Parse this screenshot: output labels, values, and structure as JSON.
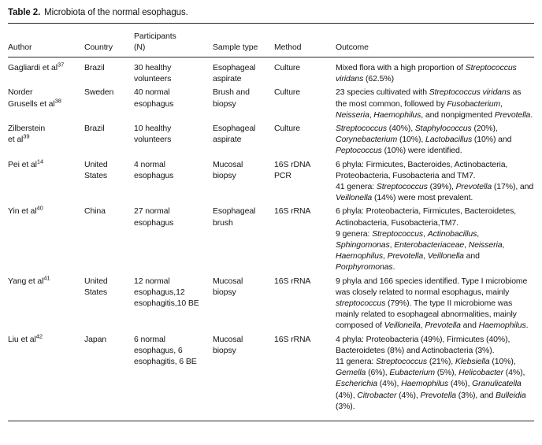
{
  "caption": {
    "bold": "Table 2.",
    "text": "Microbiota of the normal esophagus."
  },
  "columns": [
    {
      "id": "author",
      "lines": [
        "Author"
      ]
    },
    {
      "id": "country",
      "lines": [
        "Country"
      ]
    },
    {
      "id": "participants",
      "lines": [
        "Participants",
        "(N)"
      ]
    },
    {
      "id": "sample_type",
      "lines": [
        "Sample type"
      ]
    },
    {
      "id": "method",
      "lines": [
        "Method"
      ]
    },
    {
      "id": "outcome",
      "lines": [
        "Outcome"
      ]
    }
  ],
  "rows": [
    {
      "author": [
        {
          "t": "Gagliardi et al",
          "ref": "37"
        }
      ],
      "country": "Brazil",
      "participants": "30 healthy volunteers",
      "sample_type": "Esophageal aspirate",
      "method": "Culture",
      "outcome": [
        [
          {
            "t": "Mixed flora with a high proportion of "
          },
          {
            "t": "Streptococcus viridans",
            "i": 1
          },
          {
            "t": " (62.5%)"
          }
        ]
      ]
    },
    {
      "author": [
        {
          "t": "Norder"
        },
        {
          "t": "Grusells et al",
          "ref": "38"
        }
      ],
      "country": "Sweden",
      "participants": "40 normal esophagus",
      "sample_type": "Brush and biopsy",
      "method": "Culture",
      "outcome": [
        [
          {
            "t": "23 species cultivated with "
          },
          {
            "t": "Streptococcus viridans",
            "i": 1
          },
          {
            "t": " as the most common, followed by "
          },
          {
            "t": "Fusobacterium",
            "i": 1
          },
          {
            "t": ", "
          },
          {
            "t": "Neisseria",
            "i": 1
          },
          {
            "t": ", "
          },
          {
            "t": "Haemophilus",
            "i": 1
          },
          {
            "t": ", and nonpigmented "
          },
          {
            "t": "Prevotella",
            "i": 1
          },
          {
            "t": "."
          }
        ]
      ]
    },
    {
      "author": [
        {
          "t": "Zilberstein"
        },
        {
          "t": "et al",
          "ref": "39"
        }
      ],
      "country": "Brazil",
      "participants": "10 healthy volunteers",
      "sample_type": "Esophageal aspirate",
      "method": "Culture",
      "outcome": [
        [
          {
            "t": "Streptococcus",
            "i": 1
          },
          {
            "t": " (40%), "
          },
          {
            "t": "Staphylococcus",
            "i": 1
          },
          {
            "t": " (20%), "
          },
          {
            "t": "Corynebacterium",
            "i": 1
          },
          {
            "t": " (10%), "
          },
          {
            "t": "Lactobacillus",
            "i": 1
          },
          {
            "t": " (10%) and "
          },
          {
            "t": "Peptococcus",
            "i": 1
          },
          {
            "t": " (10%) were identified."
          }
        ]
      ]
    },
    {
      "author": [
        {
          "t": "Pei et al",
          "ref": "14"
        }
      ],
      "country": "United States",
      "participants": "4 normal esophagus",
      "sample_type": "Mucosal biopsy",
      "method": "16S rDNA PCR",
      "outcome": [
        [
          {
            "t": "6 phyla: Firmicutes, Bacteroides, Actinobacteria, Proteobacteria, Fusobacteria and TM7."
          }
        ],
        [
          {
            "t": "41 genera: "
          },
          {
            "t": "Streptococcus",
            "i": 1
          },
          {
            "t": " (39%), "
          },
          {
            "t": "Prevotella",
            "i": 1
          },
          {
            "t": " (17%), and "
          },
          {
            "t": "Veillonella",
            "i": 1
          },
          {
            "t": " (14%) were most prevalent."
          }
        ]
      ]
    },
    {
      "author": [
        {
          "t": "Yin et al",
          "ref": "40"
        }
      ],
      "country": "China",
      "participants": "27 normal esophagus",
      "sample_type": "Esophageal brush",
      "method": "16S rRNA",
      "outcome": [
        [
          {
            "t": "6 phyla: Proteobacteria, Firmicutes, Bacteroidetes, Actinobacteria, Fusobacteria,TM7."
          }
        ],
        [
          {
            "t": "9 genera: "
          },
          {
            "t": "Streptococcus",
            "i": 1
          },
          {
            "t": ", "
          },
          {
            "t": "Actinobacillus",
            "i": 1
          },
          {
            "t": ", "
          },
          {
            "t": "Sphingomonas",
            "i": 1
          },
          {
            "t": ", "
          },
          {
            "t": "Enterobacteriaceae",
            "i": 1
          },
          {
            "t": ", "
          },
          {
            "t": "Neisseria",
            "i": 1
          },
          {
            "t": ", "
          },
          {
            "t": "Haemophilus",
            "i": 1
          },
          {
            "t": ", "
          },
          {
            "t": "Prevotella",
            "i": 1
          },
          {
            "t": ", "
          },
          {
            "t": "Veillonella",
            "i": 1
          },
          {
            "t": " and "
          },
          {
            "t": "Porphyromonas",
            "i": 1
          },
          {
            "t": "."
          }
        ]
      ]
    },
    {
      "author": [
        {
          "t": "Yang et al",
          "ref": "41"
        }
      ],
      "country": "United States",
      "participants": "12 normal esophagus,12 esophagitis,10 BE",
      "sample_type": "Mucosal biopsy",
      "method": "16S rRNA",
      "outcome": [
        [
          {
            "t": "9 phyla and 166 species identified. Type I microbiome was closely related to normal esophagus, mainly "
          },
          {
            "t": "streptococcus",
            "i": 1
          },
          {
            "t": " (79%). The type II microbiome was mainly related to esophageal abnormalities, mainly composed of "
          },
          {
            "t": "Veillonella",
            "i": 1
          },
          {
            "t": ", "
          },
          {
            "t": "Prevotella",
            "i": 1
          },
          {
            "t": " and "
          },
          {
            "t": "Haemophilus",
            "i": 1
          },
          {
            "t": "."
          }
        ]
      ]
    },
    {
      "author": [
        {
          "t": "Liu et al",
          "ref": "42"
        }
      ],
      "country": "Japan",
      "participants": "6 normal esophagus, 6 esophagitis, 6 BE",
      "sample_type": "Mucosal biopsy",
      "method": "16S rRNA",
      "outcome": [
        [
          {
            "t": "4 phyla: Proteobacteria (49%), Firmicutes (40%), Bacteroidetes (8%) and Actinobacteria (3%)."
          }
        ],
        [
          {
            "t": "11 genera: "
          },
          {
            "t": "Streptococcus",
            "i": 1
          },
          {
            "t": " (21%), "
          },
          {
            "t": "Klebsiella",
            "i": 1
          },
          {
            "t": " (10%), "
          },
          {
            "t": "Gemella",
            "i": 1
          },
          {
            "t": " (6%), "
          },
          {
            "t": "Eubacterium",
            "i": 1
          },
          {
            "t": " (5%), "
          },
          {
            "t": "Helicobacter",
            "i": 1
          },
          {
            "t": " (4%), "
          },
          {
            "t": "Escherichia",
            "i": 1
          },
          {
            "t": " (4%), "
          },
          {
            "t": "Haemophilus",
            "i": 1
          },
          {
            "t": " (4%), "
          },
          {
            "t": "Granulicatella",
            "i": 1
          },
          {
            "t": " (4%), "
          },
          {
            "t": "Citrobacter",
            "i": 1
          },
          {
            "t": " (4%), "
          },
          {
            "t": "Prevotella",
            "i": 1
          },
          {
            "t": " (3%), and "
          },
          {
            "t": "Bulleidia",
            "i": 1
          },
          {
            "t": " (3%)."
          }
        ]
      ]
    }
  ]
}
